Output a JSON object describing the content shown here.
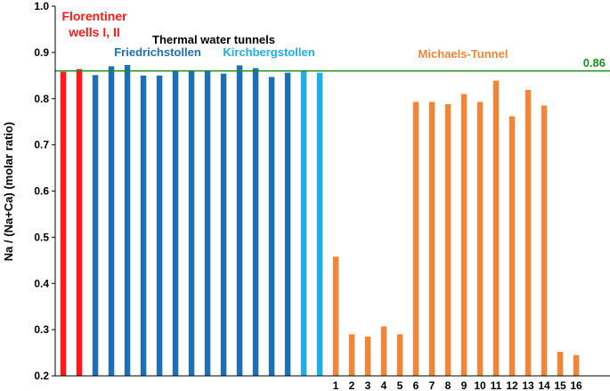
{
  "chart_data": {
    "type": "bar",
    "ylabel": "Na / (Na+Ca) (molar ratio)",
    "ylim": [
      0.2,
      1.0
    ],
    "yticks": [
      "0.2",
      "0.3",
      "0.4",
      "0.5",
      "0.6",
      "0.7",
      "0.8",
      "0.9",
      "1.0"
    ],
    "grid": false,
    "reference_line": {
      "value": 0.86,
      "label": "0.86",
      "color": "#1e8c1e"
    },
    "groups": [
      {
        "key": "florentiner",
        "name": "Florentiner wells I, II",
        "color": "#ff1a1a",
        "values": [
          0.858,
          0.864
        ],
        "categories": [
          "",
          ""
        ]
      },
      {
        "key": "friedrichstollen",
        "name": "Friedrichstollen",
        "color": "#1f6fb5",
        "values": [
          0.851,
          0.87,
          0.873,
          0.85,
          0.85,
          0.86,
          0.86,
          0.861,
          0.854,
          0.872,
          0.866,
          0.847,
          0.856
        ],
        "categories": [
          "",
          "",
          "",
          "",
          "",
          "",
          "",
          "",
          "",
          "",
          "",
          "",
          ""
        ]
      },
      {
        "key": "kirchbergstollen",
        "name": "Kirchbergstollen",
        "color": "#21aee6",
        "values": [
          0.86,
          0.856
        ],
        "categories": [
          "",
          ""
        ]
      },
      {
        "key": "michaels",
        "name": "Michaels-Tunnel",
        "color": "#ee8739",
        "values": [
          0.458,
          0.29,
          0.285,
          0.307,
          0.29,
          0.793,
          0.793,
          0.788,
          0.81,
          0.793,
          0.839,
          0.762,
          0.819,
          0.785,
          0.252,
          0.245
        ],
        "categories": [
          "1",
          "2",
          "3",
          "4",
          "5",
          "6",
          "7",
          "8",
          "9",
          "10",
          "11",
          "12",
          "13",
          "14",
          "15",
          "16"
        ]
      }
    ],
    "annotations": {
      "florentiner_line1": "Florentiner",
      "florentiner_line2": "wells I, II",
      "thermal": "Thermal water tunnels",
      "friedrichstollen": "Friedrichstollen",
      "kirchbergstollen": "Kirchbergstollen",
      "michaels": "Michaels-Tunnel"
    },
    "annotation_colors": {
      "florentiner": "#ff1a1a",
      "thermal": "#000000",
      "friedrichstollen": "#1f6fb5",
      "kirchbergstollen": "#21aee6",
      "michaels": "#ee8739"
    }
  }
}
